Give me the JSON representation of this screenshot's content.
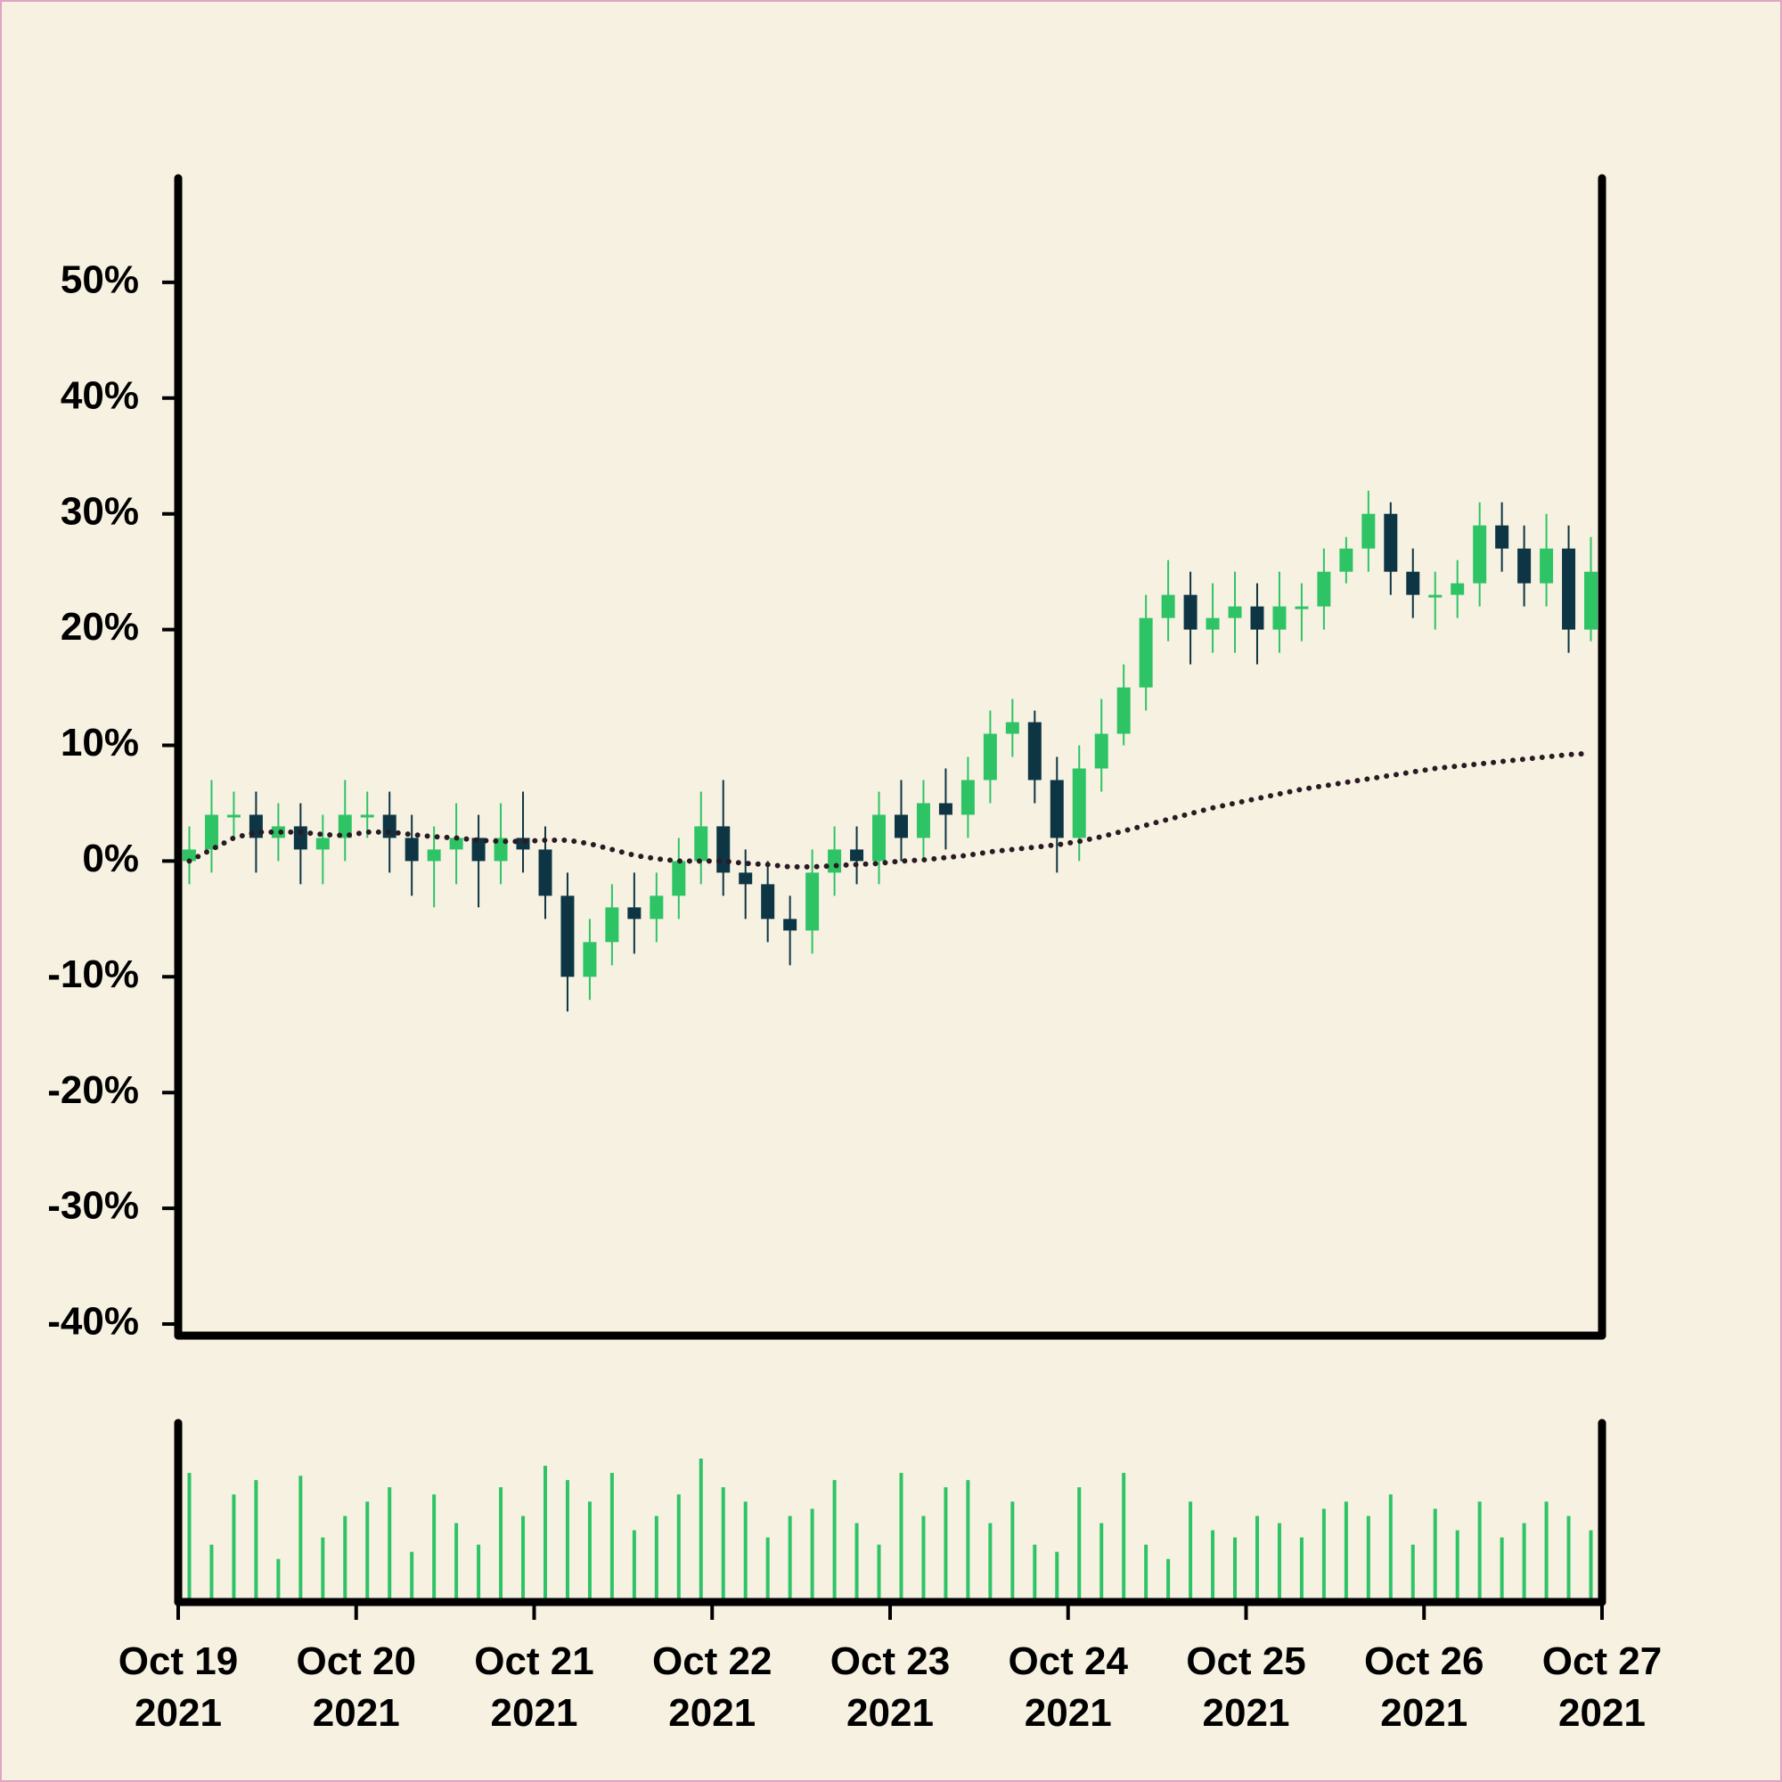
{
  "chart_data": {
    "type": "candlestick",
    "x": [
      "2021-10-19T01:30",
      "2021-10-19T04:30",
      "2021-10-19T07:30",
      "2021-10-19T10:30",
      "2021-10-19T13:30",
      "2021-10-19T16:30",
      "2021-10-19T19:30",
      "2021-10-19T22:30",
      "2021-10-20T01:30",
      "2021-10-20T04:30",
      "2021-10-20T07:30",
      "2021-10-20T10:30",
      "2021-10-20T13:30",
      "2021-10-20T16:30",
      "2021-10-20T19:30",
      "2021-10-20T22:30",
      "2021-10-21T01:30",
      "2021-10-21T04:30",
      "2021-10-21T07:30",
      "2021-10-21T10:30",
      "2021-10-21T13:30",
      "2021-10-21T16:30",
      "2021-10-21T19:30",
      "2021-10-21T22:30",
      "2021-10-22T01:30",
      "2021-10-22T04:30",
      "2021-10-22T07:30",
      "2021-10-22T10:30",
      "2021-10-22T13:30",
      "2021-10-22T16:30",
      "2021-10-22T19:30",
      "2021-10-22T22:30",
      "2021-10-23T01:30",
      "2021-10-23T04:30",
      "2021-10-23T07:30",
      "2021-10-23T10:30",
      "2021-10-23T13:30",
      "2021-10-23T16:30",
      "2021-10-23T19:30",
      "2021-10-23T22:30",
      "2021-10-24T01:30",
      "2021-10-24T04:30",
      "2021-10-24T07:30",
      "2021-10-24T10:30",
      "2021-10-24T13:30",
      "2021-10-24T16:30",
      "2021-10-24T19:30",
      "2021-10-24T22:30",
      "2021-10-25T01:30",
      "2021-10-25T04:30",
      "2021-10-25T07:30",
      "2021-10-25T10:30",
      "2021-10-25T13:30",
      "2021-10-25T16:30",
      "2021-10-25T19:30",
      "2021-10-25T22:30",
      "2021-10-26T01:30",
      "2021-10-26T04:30",
      "2021-10-26T07:30",
      "2021-10-26T10:30",
      "2021-10-26T13:30",
      "2021-10-26T16:30",
      "2021-10-26T19:30",
      "2021-10-26T22:30"
    ],
    "open": [
      0,
      1,
      4,
      4,
      2,
      3,
      1,
      2,
      4,
      4,
      2,
      0,
      1,
      2,
      0,
      2,
      1,
      -3,
      -10,
      -7,
      -4,
      -5,
      -3,
      0,
      3,
      -1,
      -2,
      -5,
      -6,
      -1,
      1,
      0,
      4,
      2,
      5,
      4,
      7,
      11,
      12,
      7,
      2,
      8,
      11,
      15,
      21,
      23,
      20,
      21,
      22,
      20,
      22,
      22,
      25,
      27,
      30,
      25,
      23,
      23,
      24,
      29,
      27,
      24,
      27,
      20
    ],
    "high": [
      3,
      7,
      6,
      6,
      5,
      5,
      4,
      7,
      6,
      6,
      4,
      3,
      5,
      4,
      5,
      6,
      3,
      -1,
      -5,
      -2,
      -1,
      -1,
      2,
      6,
      7,
      1,
      0,
      -3,
      1,
      3,
      3,
      6,
      7,
      7,
      8,
      9,
      13,
      14,
      13,
      9,
      10,
      14,
      17,
      23,
      26,
      25,
      24,
      25,
      24,
      25,
      24,
      27,
      28,
      32,
      31,
      27,
      25,
      26,
      31,
      31,
      29,
      30,
      29,
      28
    ],
    "low": [
      -2,
      -1,
      2,
      -1,
      0,
      -2,
      -2,
      0,
      2,
      -1,
      -3,
      -4,
      -2,
      -4,
      -2,
      -1,
      -5,
      -13,
      -12,
      -9,
      -8,
      -7,
      -5,
      -2,
      -3,
      -5,
      -7,
      -9,
      -8,
      -3,
      -2,
      -2,
      0,
      0,
      1,
      2,
      5,
      9,
      5,
      -1,
      0,
      6,
      10,
      13,
      19,
      17,
      18,
      18,
      17,
      18,
      19,
      20,
      24,
      25,
      23,
      21,
      20,
      21,
      22,
      25,
      22,
      22,
      18,
      19
    ],
    "close": [
      1,
      4,
      4,
      2,
      3,
      1,
      2,
      4,
      4,
      2,
      0,
      1,
      2,
      0,
      2,
      1,
      -3,
      -10,
      -7,
      -4,
      -5,
      -3,
      0,
      3,
      -1,
      -2,
      -5,
      -6,
      -1,
      1,
      0,
      4,
      2,
      5,
      4,
      7,
      11,
      12,
      7,
      2,
      8,
      11,
      15,
      21,
      23,
      20,
      21,
      22,
      20,
      22,
      22,
      25,
      27,
      30,
      25,
      23,
      23,
      24,
      29,
      27,
      24,
      27,
      20,
      25
    ],
    "moving_average": [
      0,
      1,
      2,
      2.5,
      2.5,
      2.5,
      2.3,
      2.2,
      2.5,
      2.5,
      2.3,
      2.1,
      2,
      1.8,
      1.7,
      1.7,
      1.8,
      1.8,
      1.5,
      1,
      0.5,
      0.2,
      0,
      0,
      0,
      -0.2,
      -0.3,
      -0.5,
      -0.5,
      -0.4,
      -0.3,
      -0.2,
      0,
      0.1,
      0.3,
      0.5,
      0.8,
      1,
      1.2,
      1.4,
      1.7,
      2.1,
      2.6,
      3.1,
      3.6,
      4.1,
      4.6,
      5,
      5.4,
      5.8,
      6.2,
      6.5,
      6.8,
      7.1,
      7.4,
      7.7,
      8,
      8.2,
      8.4,
      8.6,
      8.8,
      9,
      9.2,
      9.3
    ],
    "volume": [
      90,
      40,
      75,
      85,
      30,
      88,
      45,
      60,
      70,
      80,
      35,
      75,
      55,
      40,
      80,
      60,
      95,
      85,
      70,
      90,
      50,
      60,
      75,
      100,
      80,
      70,
      45,
      60,
      65,
      85,
      55,
      40,
      90,
      60,
      80,
      85,
      55,
      70,
      40,
      35,
      80,
      55,
      90,
      40,
      30,
      70,
      50,
      45,
      60,
      55,
      45,
      65,
      70,
      60,
      75,
      40,
      65,
      50,
      70,
      45,
      55,
      70,
      60,
      50
    ],
    "up_color": "#2ec466",
    "down_color": "#0d3544",
    "ma_color": "#2a1a24",
    "volume_color": "#2ec466",
    "xlim": [
      "2021-10-19",
      "2021-10-27"
    ],
    "xticks": [
      {
        "value": "2021-10-19",
        "label": "Oct 19\n2021"
      },
      {
        "value": "2021-10-20",
        "label": "Oct 20\n2021"
      },
      {
        "value": "2021-10-21",
        "label": "Oct 21\n2021"
      },
      {
        "value": "2021-10-22",
        "label": "Oct 22\n2021"
      },
      {
        "value": "2021-10-23",
        "label": "Oct 23\n2021"
      },
      {
        "value": "2021-10-24",
        "label": "Oct 24\n2021"
      },
      {
        "value": "2021-10-25",
        "label": "Oct 25\n2021"
      },
      {
        "value": "2021-10-26",
        "label": "Oct 26\n2021"
      },
      {
        "value": "2021-10-27",
        "label": "Oct 27\n2021"
      }
    ],
    "ylim": [
      -41,
      59
    ],
    "yticks": [
      {
        "value": -40,
        "label": "-40%"
      },
      {
        "value": -30,
        "label": "-30%"
      },
      {
        "value": -20,
        "label": "-20%"
      },
      {
        "value": -10,
        "label": "-10%"
      },
      {
        "value": 0,
        "label": "0%"
      },
      {
        "value": 10,
        "label": "10%"
      },
      {
        "value": 20,
        "label": "20%"
      },
      {
        "value": 30,
        "label": "30%"
      },
      {
        "value": 40,
        "label": "40%"
      },
      {
        "value": 50,
        "label": "50%"
      }
    ]
  }
}
